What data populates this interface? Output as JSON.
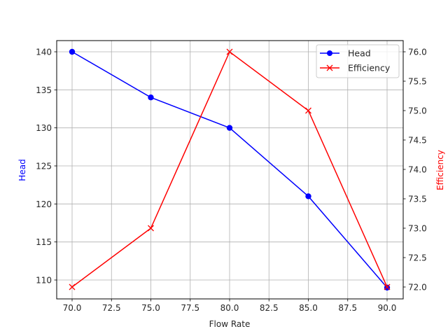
{
  "chart_data": {
    "type": "line",
    "title": "",
    "xlabel": "Flow Rate",
    "ylabel": "Head",
    "ylabel_right": "Efficiency",
    "x": [
      70,
      75,
      80,
      85,
      90
    ],
    "series": [
      {
        "name": "Head",
        "axis": "left",
        "color": "#0000ff",
        "marker": "circle",
        "values": [
          140,
          134,
          130,
          121,
          109
        ]
      },
      {
        "name": "Efficiency",
        "axis": "right",
        "color": "#ff0000",
        "marker": "x",
        "values": [
          72,
          73,
          76,
          75,
          72
        ]
      }
    ],
    "xlim": [
      69.0,
      91.0
    ],
    "ylim": [
      107.4,
      141.4
    ],
    "ylim_right": [
      71.8,
      76.2
    ],
    "xticks": [
      "70.0",
      "72.5",
      "75.0",
      "77.5",
      "80.0",
      "82.5",
      "85.0",
      "87.5",
      "90.0"
    ],
    "yticks": [
      "110",
      "115",
      "120",
      "125",
      "130",
      "135",
      "140"
    ],
    "yticks_right": [
      "72.0",
      "72.5",
      "73.0",
      "73.5",
      "74.0",
      "74.5",
      "75.0",
      "75.5",
      "76.0"
    ],
    "grid": true,
    "legend_position": "upper right"
  },
  "legend": {
    "items": [
      "Head",
      "Efficiency"
    ]
  }
}
